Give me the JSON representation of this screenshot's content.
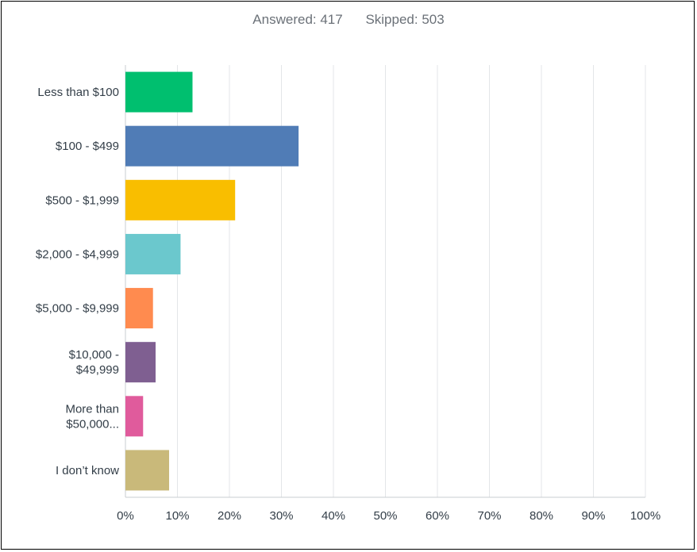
{
  "summary": {
    "answered": "Answered: 417",
    "skipped": "Skipped: 503"
  },
  "chart_data": {
    "type": "bar",
    "orientation": "horizontal",
    "categories": [
      [
        "Less than $100"
      ],
      [
        "$100 - $499"
      ],
      [
        "$500 - $1,999"
      ],
      [
        "$2,000 - $4,999"
      ],
      [
        "$5,000 - $9,999"
      ],
      [
        "$10,000 -",
        "$49,999"
      ],
      [
        "More than",
        "$50,000..."
      ],
      [
        "I don’t know"
      ]
    ],
    "values": [
      12.9,
      33.3,
      21.1,
      10.6,
      5.3,
      5.8,
      3.4,
      8.4
    ],
    "colors": [
      "#00bf6f",
      "#507cb6",
      "#f9be00",
      "#6bc8cd",
      "#ff8b4f",
      "#7f5f91",
      "#e05b9c",
      "#c9b97a"
    ],
    "xlim": [
      0,
      100
    ],
    "ticks": [
      "0%",
      "10%",
      "20%",
      "30%",
      "40%",
      "50%",
      "60%",
      "70%",
      "80%",
      "90%",
      "100%"
    ],
    "grid": true
  }
}
